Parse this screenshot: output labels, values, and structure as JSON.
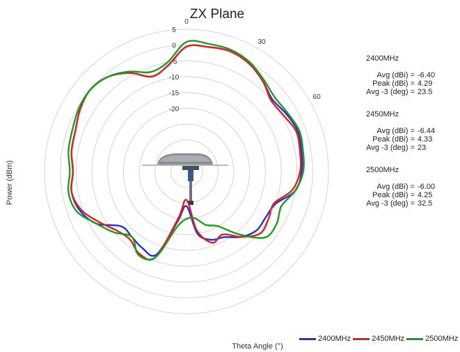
{
  "chart_data": {
    "type": "polar-line",
    "title": "ZX Plane",
    "radial_label": "Power (dBm)",
    "angle_label": "Theta  Angle (°)",
    "radial_ticks": [
      "5",
      "0",
      "-5",
      "-10",
      "-15",
      "-20"
    ],
    "angle_ticks": [
      "0",
      "30",
      "60"
    ],
    "radial_range": [
      -40,
      5
    ],
    "grid": true,
    "legend_position": "bottom-right",
    "series": [
      {
        "name": "2400MHz",
        "color": "#1f33d6",
        "theta": [
          0,
          10,
          20,
          30,
          40,
          50,
          60,
          70,
          80,
          90,
          100,
          110,
          120,
          130,
          140,
          150,
          160,
          170,
          180,
          190,
          200,
          210,
          220,
          230,
          240,
          250,
          260,
          270,
          280,
          290,
          300,
          310,
          320,
          330,
          340,
          350,
          360
        ],
        "power": [
          -0.5,
          0,
          0.5,
          -0.5,
          -2.5,
          -4.5,
          -3.5,
          -2.5,
          -3,
          -3.5,
          -5,
          -10,
          -11,
          -11,
          -13,
          -16,
          -17,
          -20,
          -29,
          -24,
          -12,
          -12,
          -13,
          -13,
          -7,
          -4,
          -3,
          -4,
          -3,
          -2.5,
          -1,
          0,
          -1,
          -4,
          -8,
          -6,
          -0.5
        ],
        "stats": {
          "avg": "-6.40",
          "peak": "4.29",
          "avg3": "23.5"
        }
      },
      {
        "name": "2450MHz",
        "color": "#e32020",
        "theta": [
          0,
          10,
          20,
          30,
          40,
          50,
          60,
          70,
          80,
          90,
          100,
          110,
          120,
          130,
          140,
          150,
          160,
          170,
          180,
          190,
          200,
          210,
          220,
          230,
          240,
          250,
          260,
          270,
          280,
          290,
          300,
          310,
          320,
          330,
          340,
          350,
          360
        ],
        "power": [
          -0.5,
          0,
          0.5,
          -0.5,
          -2.5,
          -5,
          -4.5,
          -3,
          -3.5,
          -4,
          -6,
          -10.5,
          -10,
          -9.5,
          -13,
          -17,
          -16,
          -21,
          -31,
          -25,
          -11,
          -10,
          -12,
          -11,
          -8,
          -4.5,
          -3,
          -4,
          -3,
          -2.5,
          -1,
          0,
          -1,
          -4,
          -8,
          -6,
          -0.5
        ],
        "stats": {
          "avg": "-6.44",
          "peak": "4.33",
          "avg3": "23"
        }
      },
      {
        "name": "2500MHz",
        "color": "#1a9e1a",
        "theta": [
          0,
          10,
          20,
          30,
          40,
          50,
          60,
          70,
          80,
          90,
          100,
          110,
          120,
          130,
          140,
          150,
          160,
          170,
          180,
          190,
          200,
          210,
          220,
          230,
          240,
          250,
          260,
          270,
          280,
          290,
          300,
          310,
          320,
          330,
          340,
          350,
          360
        ],
        "power": [
          1,
          1,
          1,
          0,
          -2,
          -3.5,
          -3,
          -2,
          -2.5,
          -3,
          -5,
          -8,
          -7,
          -7.5,
          -14,
          -20,
          -22,
          -25,
          -25,
          -22,
          -11,
          -9.5,
          -13,
          -10,
          -7,
          -3,
          -2,
          -3,
          -2,
          -1.5,
          -0.5,
          0,
          -1,
          -3.5,
          -6.5,
          -5,
          1
        ],
        "stats": {
          "avg": "-6.00",
          "peak": "4.25",
          "avg3": "32.5"
        }
      }
    ]
  },
  "stats_labels": {
    "avg": "Avg (dBi) =",
    "peak": "Peak (dBi) =",
    "avg3": "Avg -3 (deg) ="
  }
}
